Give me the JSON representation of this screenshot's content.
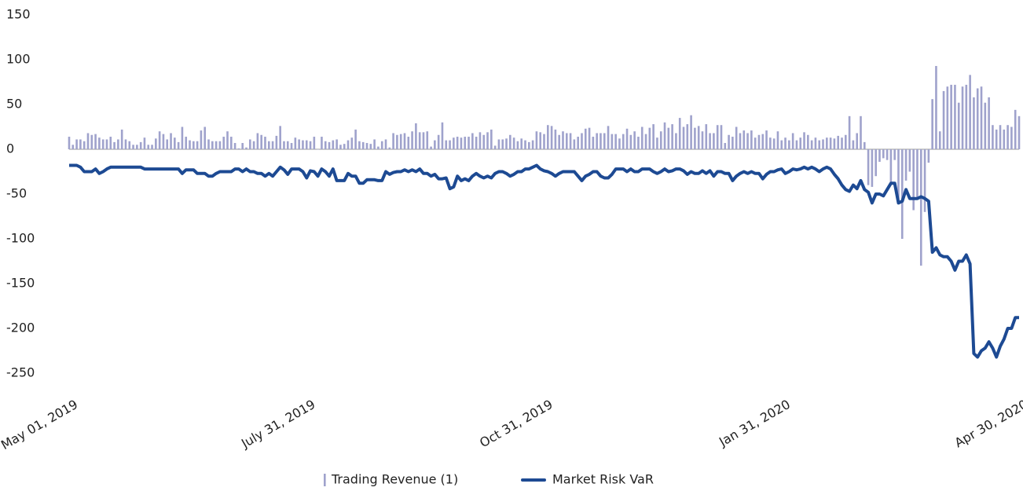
{
  "chart_data": {
    "type": "combo",
    "categories": [
      "May 01, 2019",
      null,
      null,
      null,
      null,
      null,
      null,
      null,
      null,
      null,
      null,
      null,
      null,
      null,
      null,
      null,
      null,
      null,
      null,
      null,
      null,
      null,
      null,
      null,
      null,
      null,
      null,
      null,
      null,
      null,
      null,
      null,
      null,
      null,
      null,
      null,
      null,
      null,
      null,
      null,
      null,
      null,
      null,
      null,
      null,
      null,
      null,
      null,
      null,
      null,
      null,
      null,
      null,
      null,
      null,
      null,
      null,
      null,
      null,
      null,
      null,
      null,
      null,
      "July 31, 2019",
      null,
      null,
      null,
      null,
      null,
      null,
      null,
      null,
      null,
      null,
      null,
      null,
      null,
      null,
      null,
      null,
      null,
      null,
      null,
      null,
      null,
      null,
      null,
      null,
      null,
      null,
      null,
      null,
      null,
      null,
      null,
      null,
      null,
      null,
      null,
      null,
      null,
      null,
      null,
      null,
      null,
      null,
      null,
      null,
      null,
      null,
      null,
      null,
      null,
      null,
      null,
      null,
      null,
      null,
      null,
      null,
      null,
      null,
      null,
      null,
      null,
      null,
      "Oct 31, 2019",
      null,
      null,
      null,
      null,
      null,
      null,
      null,
      null,
      null,
      null,
      null,
      null,
      null,
      null,
      null,
      null,
      null,
      null,
      null,
      null,
      null,
      null,
      null,
      null,
      null,
      null,
      null,
      null,
      null,
      null,
      null,
      null,
      null,
      null,
      null,
      null,
      null,
      null,
      null,
      null,
      null,
      null,
      null,
      null,
      null,
      null,
      null,
      null,
      null,
      null,
      null,
      null,
      null,
      null,
      null,
      null,
      null,
      null,
      null,
      null,
      null,
      null,
      "Jan 31, 2020",
      null,
      null,
      null,
      null,
      null,
      null,
      null,
      null,
      null,
      null,
      null,
      null,
      null,
      null,
      null,
      null,
      null,
      null,
      null,
      null,
      null,
      null,
      null,
      null,
      null,
      null,
      null,
      null,
      null,
      null,
      null,
      null,
      null,
      null,
      null,
      null,
      null,
      null,
      null,
      null,
      null,
      null,
      null,
      null,
      null,
      null,
      null,
      null,
      null,
      null,
      null,
      null,
      null,
      null,
      null,
      null,
      null,
      null,
      null,
      null,
      null,
      null,
      "Apr 30, 2020"
    ],
    "series": [
      {
        "name": "Trading Revenue (1)",
        "type": "bar",
        "color": "#9fa2cc",
        "values": [
          14,
          5,
          11,
          11,
          9,
          18,
          16,
          17,
          13,
          11,
          11,
          14,
          8,
          11,
          22,
          11,
          9,
          5,
          5,
          8,
          13,
          5,
          5,
          12,
          20,
          17,
          11,
          18,
          13,
          8,
          25,
          14,
          10,
          9,
          9,
          21,
          25,
          11,
          9,
          9,
          9,
          14,
          20,
          14,
          7,
          1,
          7,
          2,
          11,
          9,
          18,
          16,
          14,
          9,
          9,
          15,
          26,
          9,
          9,
          7,
          13,
          11,
          10,
          10,
          9,
          14,
          0,
          14,
          9,
          8,
          10,
          11,
          5,
          6,
          10,
          13,
          22,
          9,
          8,
          7,
          6,
          11,
          3,
          9,
          11,
          2,
          18,
          16,
          17,
          18,
          14,
          20,
          29,
          19,
          19,
          20,
          3,
          10,
          16,
          30,
          10,
          10,
          13,
          14,
          13,
          14,
          14,
          18,
          14,
          19,
          16,
          19,
          22,
          4,
          11,
          11,
          12,
          16,
          13,
          9,
          12,
          10,
          8,
          10,
          20,
          19,
          17,
          27,
          26,
          22,
          16,
          20,
          18,
          18,
          11,
          14,
          18,
          23,
          24,
          14,
          18,
          18,
          18,
          26,
          17,
          17,
          12,
          17,
          23,
          16,
          20,
          14,
          25,
          17,
          24,
          28,
          13,
          20,
          30,
          24,
          28,
          18,
          35,
          25,
          28,
          38,
          24,
          26,
          20,
          28,
          18,
          18,
          27,
          27,
          7,
          16,
          14,
          25,
          18,
          21,
          18,
          21,
          13,
          16,
          17,
          21,
          13,
          12,
          20,
          10,
          13,
          10,
          18,
          10,
          13,
          19,
          16,
          10,
          13,
          10,
          11,
          13,
          13,
          12,
          15,
          13,
          16,
          37,
          10,
          18,
          37,
          8,
          -40,
          -42,
          -30,
          -14,
          -10,
          -12,
          -40,
          -12,
          -57,
          -100,
          -35,
          -25,
          -68,
          -55,
          -130,
          -70,
          -15,
          56,
          93,
          20,
          65,
          70,
          72,
          72,
          52,
          70,
          72,
          83,
          58,
          68,
          70,
          52,
          58,
          27,
          22,
          27,
          22,
          27,
          25,
          44,
          37
        ]
      },
      {
        "name": "Market Risk VaR",
        "type": "line",
        "color": "#1d4a93",
        "values": [
          -18,
          -18,
          -18,
          -20,
          -25,
          -25,
          -25,
          -22,
          -27,
          -25,
          -22,
          -20,
          -20,
          -20,
          -20,
          -20,
          -20,
          -20,
          -20,
          -20,
          -22,
          -22,
          -22,
          -22,
          -22,
          -22,
          -22,
          -22,
          -22,
          -22,
          -27,
          -23,
          -23,
          -23,
          -27,
          -27,
          -27,
          -30,
          -30,
          -27,
          -25,
          -25,
          -25,
          -25,
          -22,
          -22,
          -25,
          -22,
          -25,
          -25,
          -27,
          -27,
          -30,
          -27,
          -30,
          -25,
          -20,
          -23,
          -28,
          -22,
          -22,
          -22,
          -25,
          -32,
          -24,
          -25,
          -30,
          -22,
          -25,
          -30,
          -22,
          -35,
          -35,
          -35,
          -27,
          -30,
          -30,
          -38,
          -38,
          -34,
          -34,
          -34,
          -35,
          -35,
          -25,
          -28,
          -26,
          -25,
          -25,
          -23,
          -25,
          -23,
          -25,
          -22,
          -27,
          -27,
          -30,
          -28,
          -33,
          -33,
          -32,
          -44,
          -42,
          -30,
          -35,
          -33,
          -35,
          -30,
          -27,
          -30,
          -32,
          -30,
          -32,
          -27,
          -25,
          -25,
          -27,
          -30,
          -28,
          -25,
          -25,
          -22,
          -22,
          -20,
          -18,
          -22,
          -24,
          -25,
          -27,
          -30,
          -27,
          -25,
          -25,
          -25,
          -25,
          -30,
          -35,
          -30,
          -28,
          -25,
          -25,
          -30,
          -32,
          -32,
          -28,
          -22,
          -22,
          -22,
          -25,
          -22,
          -25,
          -25,
          -22,
          -22,
          -22,
          -25,
          -27,
          -25,
          -22,
          -25,
          -24,
          -22,
          -22,
          -24,
          -28,
          -25,
          -27,
          -27,
          -24,
          -27,
          -24,
          -30,
          -25,
          -25,
          -27,
          -27,
          -35,
          -30,
          -27,
          -25,
          -27,
          -25,
          -27,
          -27,
          -33,
          -28,
          -25,
          -25,
          -23,
          -22,
          -27,
          -25,
          -22,
          -23,
          -22,
          -20,
          -22,
          -20,
          -22,
          -25,
          -22,
          -20,
          -22,
          -28,
          -33,
          -40,
          -45,
          -47,
          -40,
          -44,
          -35,
          -45,
          -48,
          -60,
          -50,
          -50,
          -52,
          -45,
          -38,
          -38,
          -60,
          -58,
          -45,
          -55,
          -55,
          -55,
          -53,
          -55,
          -58,
          -115,
          -110,
          -118,
          -120,
          -120,
          -125,
          -135,
          -125,
          -125,
          -118,
          -128,
          -228,
          -232,
          -225,
          -222,
          -215,
          -222,
          -232,
          -220,
          -212,
          -200,
          -200,
          -188,
          -188
        ]
      }
    ],
    "ylim": [
      -260,
      160
    ],
    "yticks": [
      150,
      100,
      50,
      0,
      -50,
      -100,
      -150,
      -200,
      -250
    ]
  }
}
